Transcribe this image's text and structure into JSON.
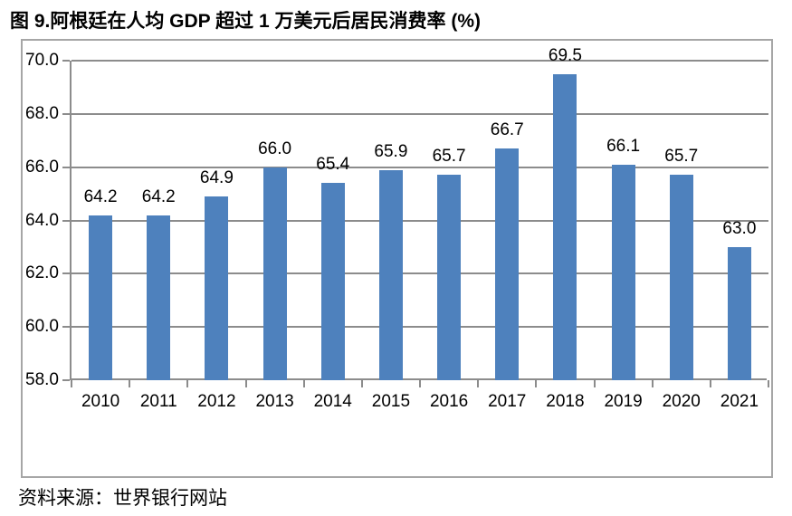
{
  "title": "图 9.阿根廷在人均 GDP 超过 1 万美元后居民消费率 (%)",
  "source": "资料来源：世界银行网站",
  "chart_data": {
    "type": "bar",
    "title": "图 9.阿根廷在人均 GDP 超过 1 万美元后居民消费率 (%)",
    "categories": [
      "2010",
      "2011",
      "2012",
      "2013",
      "2014",
      "2015",
      "2016",
      "2017",
      "2018",
      "2019",
      "2020",
      "2021"
    ],
    "values": [
      64.2,
      64.2,
      64.9,
      66.0,
      65.4,
      65.9,
      65.7,
      66.7,
      69.5,
      66.1,
      65.7,
      63.0
    ],
    "xlabel": "",
    "ylabel": "",
    "ylim": [
      58.0,
      70.0
    ],
    "yticks": [
      58.0,
      60.0,
      62.0,
      64.0,
      66.0,
      68.0,
      70.0
    ],
    "grid": true,
    "legend": false,
    "data_labels": true,
    "bar_color": "#4e81bd",
    "gridline_color": "#8c8c8c",
    "axis_color": "#8c8c8c",
    "frame_border_color": "#a6a6a6",
    "text_color": "#000000"
  }
}
